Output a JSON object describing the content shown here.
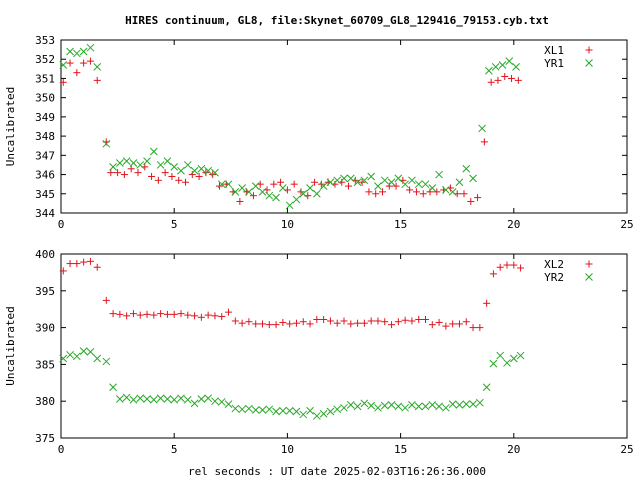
{
  "figure_title": "HIRES continuum, GL8, file:Skynet_60709_GL8_129416_79153.cyb.txt",
  "xlabel": "rel seconds : UT date 2025-02-03T16:26:36.000",
  "colors": {
    "red": "#e0141c",
    "green": "#27a827",
    "axis": "#000000"
  },
  "chart_data": [
    {
      "type": "scatter",
      "title": "",
      "ylabel": "Uncalibrated",
      "xlim": [
        0,
        25
      ],
      "ylim": [
        344,
        353
      ],
      "xticks": [
        "0",
        "5",
        "10",
        "15",
        "20",
        "25"
      ],
      "yticks": [
        "344",
        "345",
        "346",
        "347",
        "348",
        "349",
        "350",
        "351",
        "352",
        "353"
      ],
      "grid": false,
      "legend": "top-right",
      "series": [
        {
          "name": "XL1",
          "color": "#e0141c",
          "marker": "plus",
          "x": [
            0.1,
            0.4,
            0.7,
            1.0,
            1.3,
            1.6,
            2.0,
            2.2,
            2.5,
            2.8,
            3.1,
            3.4,
            3.7,
            4.0,
            4.3,
            4.6,
            4.9,
            5.2,
            5.5,
            5.8,
            6.1,
            6.4,
            6.7,
            7.0,
            7.3,
            7.6,
            7.9,
            8.2,
            8.5,
            8.8,
            9.1,
            9.4,
            9.7,
            10.0,
            10.3,
            10.6,
            10.9,
            11.2,
            11.5,
            11.8,
            12.1,
            12.4,
            12.7,
            13.0,
            13.3,
            13.6,
            13.9,
            14.2,
            14.5,
            14.8,
            15.1,
            15.4,
            15.7,
            16.0,
            16.3,
            16.6,
            16.9,
            17.2,
            17.5,
            17.8,
            18.1,
            18.4,
            18.7,
            19.0,
            19.3,
            19.6,
            19.9,
            20.2
          ],
          "y": [
            350.8,
            351.8,
            351.3,
            351.8,
            351.9,
            350.9,
            347.7,
            346.1,
            346.1,
            346.0,
            346.3,
            346.1,
            346.4,
            345.9,
            345.7,
            346.1,
            345.9,
            345.7,
            345.6,
            346.0,
            345.9,
            346.1,
            346.0,
            345.4,
            345.5,
            345.1,
            344.6,
            345.1,
            344.9,
            345.5,
            345.2,
            345.5,
            345.6,
            345.2,
            345.5,
            345.1,
            344.9,
            345.6,
            345.5,
            345.6,
            345.5,
            345.6,
            345.4,
            345.7,
            345.6,
            345.1,
            345.0,
            345.1,
            345.4,
            345.4,
            345.7,
            345.2,
            345.1,
            345.0,
            345.1,
            345.1,
            345.2,
            345.3,
            345.0,
            345.0,
            344.6,
            344.8,
            347.7,
            350.8,
            350.9,
            351.1,
            351.0,
            350.9
          ]
        },
        {
          "name": "YR1",
          "color": "#27a827",
          "marker": "cross",
          "x": [
            0.1,
            0.4,
            0.7,
            1.0,
            1.3,
            1.6,
            2.0,
            2.3,
            2.6,
            2.9,
            3.2,
            3.5,
            3.8,
            4.1,
            4.4,
            4.7,
            5.0,
            5.3,
            5.6,
            5.9,
            6.2,
            6.5,
            6.8,
            7.1,
            7.4,
            7.7,
            8.0,
            8.3,
            8.6,
            8.9,
            9.2,
            9.5,
            9.8,
            10.1,
            10.4,
            10.7,
            11.0,
            11.3,
            11.6,
            11.9,
            12.2,
            12.5,
            12.8,
            13.1,
            13.4,
            13.7,
            14.0,
            14.3,
            14.6,
            14.9,
            15.2,
            15.5,
            15.8,
            16.1,
            16.4,
            16.7,
            17.0,
            17.3,
            17.6,
            17.9,
            18.2,
            18.6,
            18.9,
            19.2,
            19.5,
            19.8,
            20.1
          ],
          "y": [
            351.7,
            352.4,
            352.3,
            352.4,
            352.6,
            351.6,
            347.6,
            346.4,
            346.6,
            346.7,
            346.6,
            346.5,
            346.7,
            347.2,
            346.5,
            346.7,
            346.4,
            346.2,
            346.5,
            346.2,
            346.3,
            346.2,
            346.1,
            345.5,
            345.5,
            345.1,
            345.3,
            345.1,
            345.4,
            345.1,
            344.9,
            344.8,
            345.3,
            344.4,
            344.7,
            345.0,
            345.3,
            345.0,
            345.4,
            345.6,
            345.7,
            345.8,
            345.8,
            345.6,
            345.7,
            345.9,
            345.4,
            345.7,
            345.6,
            345.8,
            345.5,
            345.7,
            345.5,
            345.5,
            345.3,
            346.0,
            345.2,
            345.1,
            345.6,
            346.3,
            345.8,
            348.4,
            351.4,
            351.6,
            351.7,
            351.9,
            351.6
          ]
        }
      ]
    },
    {
      "type": "scatter",
      "title": "",
      "ylabel": "Uncalibrated",
      "xlim": [
        0,
        25
      ],
      "ylim": [
        375,
        400
      ],
      "xticks": [
        "0",
        "5",
        "10",
        "15",
        "20",
        "25"
      ],
      "yticks": [
        "375",
        "380",
        "385",
        "390",
        "395",
        "400"
      ],
      "grid": false,
      "legend": "top-right",
      "series": [
        {
          "name": "XL2",
          "color": "#e0141c",
          "marker": "plus",
          "x": [
            0.1,
            0.4,
            0.7,
            1.0,
            1.3,
            1.6,
            2.0,
            2.3,
            2.6,
            2.9,
            3.2,
            3.5,
            3.8,
            4.1,
            4.4,
            4.7,
            5.0,
            5.3,
            5.6,
            5.9,
            6.2,
            6.5,
            6.8,
            7.1,
            7.4,
            7.7,
            8.0,
            8.3,
            8.6,
            8.9,
            9.2,
            9.5,
            9.8,
            10.1,
            10.4,
            10.7,
            11.0,
            11.3,
            11.6,
            11.9,
            12.2,
            12.5,
            12.8,
            13.1,
            13.4,
            13.7,
            14.0,
            14.3,
            14.6,
            14.9,
            15.2,
            15.5,
            15.8,
            16.1,
            16.4,
            16.7,
            17.0,
            17.3,
            17.6,
            17.9,
            18.2,
            18.5,
            18.8,
            19.1,
            19.4,
            19.7,
            20.0,
            20.3
          ],
          "y": [
            397.7,
            398.7,
            398.7,
            398.9,
            399.0,
            398.2,
            393.7,
            391.9,
            391.8,
            391.6,
            391.9,
            391.7,
            391.8,
            391.7,
            391.9,
            391.8,
            391.8,
            391.9,
            391.7,
            391.6,
            391.4,
            391.7,
            391.6,
            391.5,
            392.1,
            390.9,
            390.6,
            390.8,
            390.5,
            390.5,
            390.4,
            390.4,
            390.7,
            390.5,
            390.6,
            390.8,
            390.5,
            391.1,
            391.1,
            390.9,
            390.6,
            390.9,
            390.5,
            390.6,
            390.6,
            390.9,
            390.9,
            390.8,
            390.4,
            390.8,
            391.0,
            390.9,
            391.1,
            391.1,
            390.4,
            390.7,
            390.2,
            390.5,
            390.5,
            390.8,
            390.0,
            390.0,
            393.3,
            397.3,
            398.2,
            398.5,
            398.5,
            398.1
          ]
        },
        {
          "name": "YR2",
          "color": "#27a827",
          "marker": "cross",
          "x": [
            0.1,
            0.4,
            0.7,
            1.0,
            1.3,
            1.6,
            2.0,
            2.3,
            2.6,
            2.9,
            3.2,
            3.5,
            3.8,
            4.1,
            4.4,
            4.7,
            5.0,
            5.3,
            5.6,
            5.9,
            6.2,
            6.5,
            6.8,
            7.1,
            7.4,
            7.7,
            8.0,
            8.3,
            8.6,
            8.9,
            9.2,
            9.5,
            9.8,
            10.1,
            10.4,
            10.7,
            11.0,
            11.3,
            11.6,
            11.9,
            12.2,
            12.5,
            12.8,
            13.1,
            13.4,
            13.7,
            14.0,
            14.3,
            14.6,
            14.9,
            15.2,
            15.5,
            15.8,
            16.1,
            16.4,
            16.7,
            17.0,
            17.3,
            17.6,
            17.9,
            18.2,
            18.5,
            18.8,
            19.1,
            19.4,
            19.7,
            20.0,
            20.3
          ],
          "y": [
            385.8,
            386.3,
            386.1,
            386.8,
            386.7,
            385.8,
            385.4,
            381.9,
            380.3,
            380.5,
            380.2,
            380.4,
            380.3,
            380.2,
            380.4,
            380.3,
            380.2,
            380.4,
            380.2,
            379.7,
            380.3,
            380.4,
            380.0,
            379.9,
            379.6,
            379.0,
            378.9,
            379.0,
            378.8,
            378.8,
            378.9,
            378.6,
            378.7,
            378.7,
            378.6,
            378.2,
            378.7,
            378.0,
            378.3,
            378.6,
            378.9,
            379.1,
            379.5,
            379.3,
            379.7,
            379.4,
            379.1,
            379.4,
            379.5,
            379.3,
            379.1,
            379.5,
            379.3,
            379.3,
            379.5,
            379.3,
            379.1,
            379.6,
            379.5,
            379.6,
            379.6,
            379.8,
            381.9,
            385.1,
            386.2,
            385.2,
            385.8,
            386.2
          ]
        }
      ]
    }
  ]
}
